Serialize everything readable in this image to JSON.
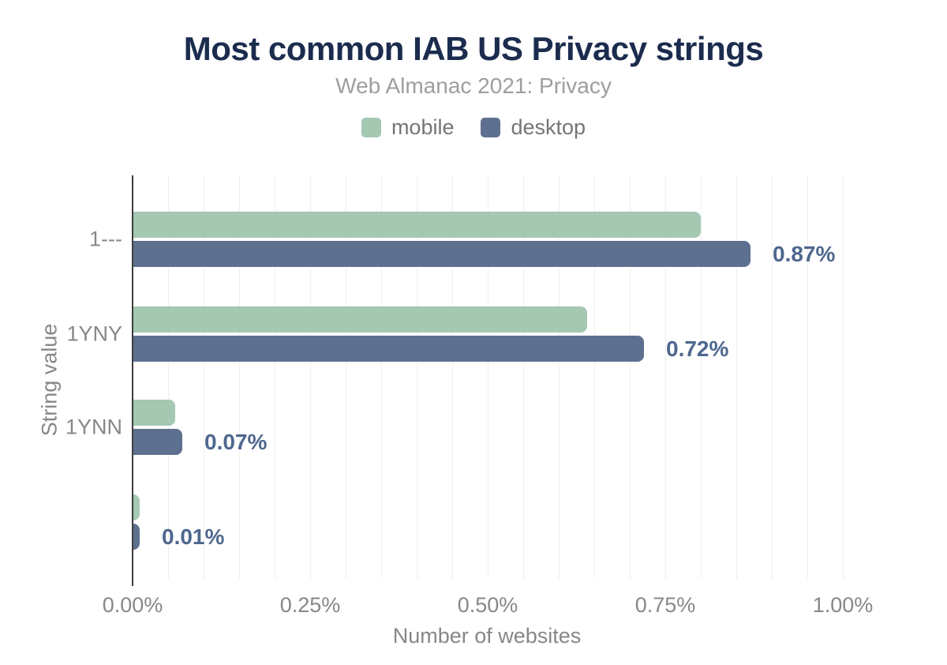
{
  "header": {
    "title": "Most common IAB US Privacy strings",
    "subtitle": "Web Almanac 2021: Privacy"
  },
  "legend": {
    "items": [
      {
        "label": "mobile",
        "color": "#a5c8b3"
      },
      {
        "label": "desktop",
        "color": "#5e7090"
      }
    ]
  },
  "axes": {
    "x_title": "Number of websites",
    "y_title": "String value"
  },
  "colors": {
    "title": "#1b2c4e",
    "subtitle": "#9e9e9e",
    "axis_text": "#878787",
    "legend_text": "#757575",
    "data_label": "#4e678e",
    "axis_line": "#3d3d3d",
    "gridline": "#efefef",
    "mobile": "#a5c8b3",
    "desktop": "#5e7090"
  },
  "chart_data": {
    "type": "bar",
    "orientation": "horizontal",
    "title": "Most common IAB US Privacy strings",
    "subtitle": "Web Almanac 2021: Privacy",
    "categories": [
      "1---",
      "1YNY",
      "1YNN",
      ""
    ],
    "series": [
      {
        "name": "mobile",
        "color": "#a5c8b3",
        "values": [
          0.8,
          0.64,
          0.06,
          0.01
        ]
      },
      {
        "name": "desktop",
        "color": "#5e7090",
        "values": [
          0.87,
          0.72,
          0.07,
          0.01
        ]
      }
    ],
    "bar_labels": [
      "0.87%",
      "0.72%",
      "0.07%",
      "0.01%"
    ],
    "bar_label_series": "desktop",
    "xlabel": "Number of websites",
    "ylabel": "String value",
    "xlim": [
      0,
      1.0
    ],
    "x_ticks": [
      {
        "label": "0.00%",
        "value": 0.0
      },
      {
        "label": "0.25%",
        "value": 0.25
      },
      {
        "label": "0.50%",
        "value": 0.5
      },
      {
        "label": "0.75%",
        "value": 0.75
      },
      {
        "label": "1.00%",
        "value": 1.0
      }
    ],
    "x_minor_step": 0.05,
    "grid": "vertical-minor",
    "legend_position": "top",
    "unit": "%"
  }
}
